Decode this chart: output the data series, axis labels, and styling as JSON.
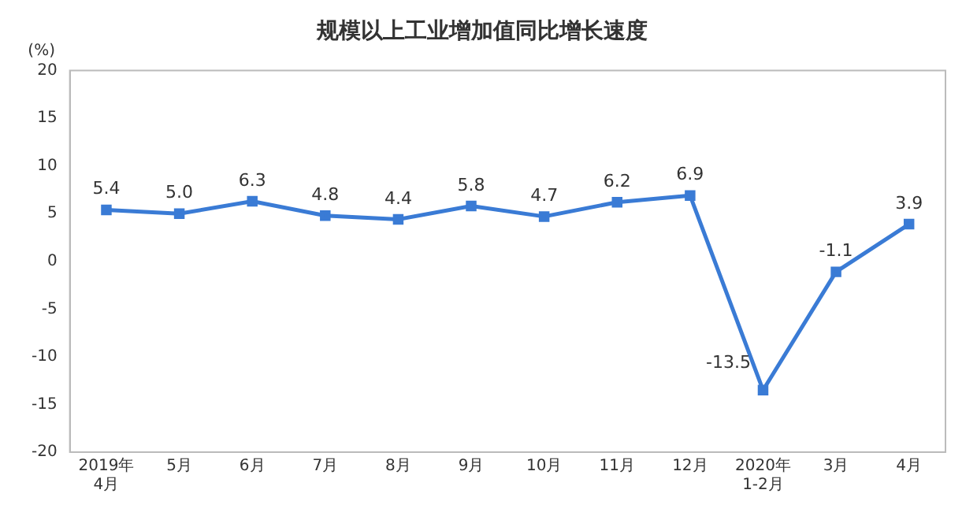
{
  "chart_data": {
    "type": "line",
    "title": "规模以上工业增加值同比增长速度",
    "ylabel": "(%)",
    "categories": [
      "2019年\n4月",
      "5月",
      "6月",
      "7月",
      "8月",
      "9月",
      "10月",
      "11月",
      "12月",
      "2020年\n1-2月",
      "3月",
      "4月"
    ],
    "series": [
      {
        "color": "#3a7bd5",
        "values": [
          5.4,
          5.0,
          6.3,
          4.8,
          4.4,
          5.8,
          4.7,
          6.2,
          6.9,
          -13.5,
          -1.1,
          3.9
        ],
        "value_labels": [
          "5.4",
          "5.0",
          "6.3",
          "4.8",
          "4.4",
          "5.8",
          "4.7",
          "6.2",
          "6.9",
          "-13.5",
          "-1.1",
          "3.9"
        ]
      }
    ],
    "ylim": [
      -20,
      20
    ],
    "yticks": [
      -20,
      -15,
      -10,
      -5,
      0,
      5,
      10,
      15,
      20
    ],
    "grid": false,
    "legend": false,
    "marker": "square",
    "line_style": "solid"
  }
}
